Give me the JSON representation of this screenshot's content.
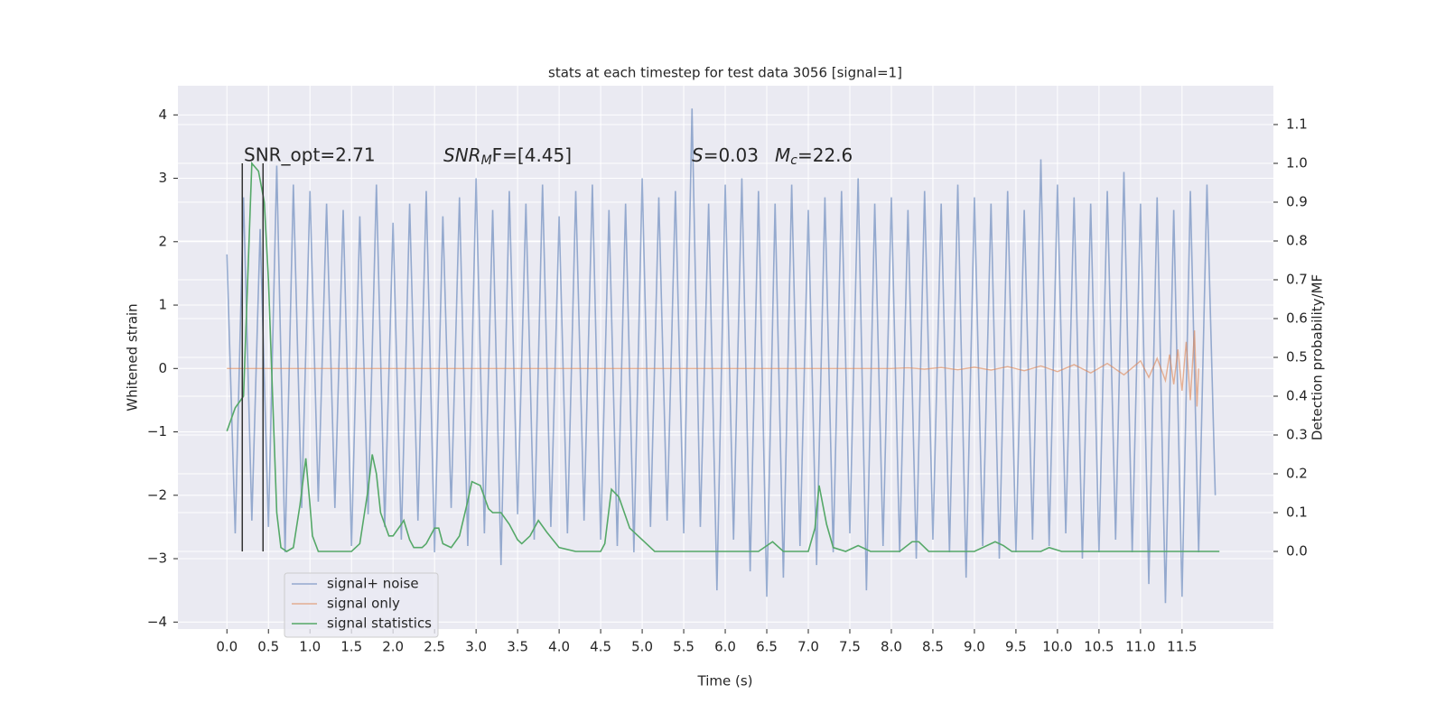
{
  "chart_data": {
    "type": "line",
    "title": "stats at each timestep for test data 3056 [signal=1]",
    "xlabel": "Time (s)",
    "ylabel": "Whitened strain",
    "y2label": "Detection probability/MF",
    "xlim": [
      -0.59,
      12.6
    ],
    "ylim": [
      -4.11,
      4.46
    ],
    "y2lim": [
      -0.2,
      1.2
    ],
    "grid": true,
    "legend": "lower left",
    "xticks": [
      {
        "value": 0,
        "label": "0.0"
      },
      0.5,
      {
        "value": 1,
        "label": "1.0"
      },
      1.5,
      {
        "value": 2,
        "label": "2.0"
      },
      2.5,
      {
        "value": 3,
        "label": "3.0"
      },
      3.5,
      {
        "value": 4,
        "label": "4.0"
      },
      4.5,
      {
        "value": 5,
        "label": "5.0"
      },
      5.5,
      {
        "value": 6,
        "label": "6.0"
      },
      6.5,
      {
        "value": 7,
        "label": "7.0"
      },
      7.5,
      {
        "value": 8,
        "label": "8.0"
      },
      8.5,
      {
        "value": 9,
        "label": "9.0"
      },
      9.5,
      {
        "value": 10,
        "label": "10.0"
      },
      10.5,
      {
        "value": 11,
        "label": "11.0"
      },
      11.5
    ],
    "yticks": [
      {
        "value": -4,
        "label": "−4"
      },
      {
        "value": -3,
        "label": "−3"
      },
      {
        "value": -2,
        "label": "−2"
      },
      {
        "value": -1,
        "label": "−1"
      },
      0,
      1,
      2,
      3,
      4
    ],
    "y2ticks": [
      {
        "value": 0,
        "label": "0.0"
      },
      0.1,
      0.2,
      0.3,
      0.4,
      0.5,
      0.6,
      0.7,
      0.8,
      0.9,
      {
        "value": 1,
        "label": "1.0"
      },
      1.1
    ],
    "annotations": [
      {
        "text": "SNR_opt=2.71"
      },
      {
        "main": "SNR",
        "sub": "M",
        "tail": "F=[4.45]"
      },
      {
        "main": "S",
        "tail": "=0.03"
      },
      {
        "main": "M",
        "sub": "c",
        "tail": "=22.6"
      }
    ],
    "vlines": {
      "x": [
        0.185,
        0.435
      ],
      "ymin": 0,
      "ymax": 1,
      "axis": "y2",
      "color": "#333333"
    },
    "series": [
      {
        "name": "signal+ noise",
        "color": "#4c72b0",
        "x": [
          0.0,
          0.1,
          0.2,
          0.3,
          0.4,
          0.5,
          0.6,
          0.7,
          0.8,
          0.9,
          1.0,
          1.1,
          1.2,
          1.3,
          1.4,
          1.5,
          1.6,
          1.7,
          1.8,
          1.9,
          2.0,
          2.1,
          2.2,
          2.3,
          2.4,
          2.5,
          2.6,
          2.7,
          2.8,
          2.9,
          3.0,
          3.1,
          3.2,
          3.3,
          3.4,
          3.5,
          3.6,
          3.7,
          3.8,
          3.9,
          4.0,
          4.1,
          4.2,
          4.3,
          4.4,
          4.5,
          4.6,
          4.7,
          4.8,
          4.9,
          5.0,
          5.1,
          5.2,
          5.3,
          5.4,
          5.5,
          5.6,
          5.7,
          5.8,
          5.9,
          6.0,
          6.1,
          6.2,
          6.3,
          6.4,
          6.5,
          6.6,
          6.7,
          6.8,
          6.9,
          7.0,
          7.1,
          7.2,
          7.3,
          7.4,
          7.5,
          7.6,
          7.7,
          7.8,
          7.9,
          8.0,
          8.1,
          8.2,
          8.3,
          8.4,
          8.5,
          8.6,
          8.7,
          8.8,
          8.9,
          9.0,
          9.1,
          9.2,
          9.3,
          9.4,
          9.5,
          9.6,
          9.7,
          9.8,
          9.9,
          10.0,
          10.1,
          10.2,
          10.3,
          10.4,
          10.5,
          10.6,
          10.7,
          10.8,
          10.9,
          11.0,
          11.1,
          11.2,
          11.3,
          11.4,
          11.5,
          11.6,
          11.7,
          11.8,
          11.9
        ],
        "values": [
          1.8,
          -2.6,
          2.7,
          -2.4,
          2.2,
          -2.5,
          3.2,
          -2.9,
          2.9,
          -2.2,
          2.8,
          -2.1,
          2.6,
          -2.2,
          2.5,
          -2.8,
          2.4,
          -2.3,
          2.9,
          -2.5,
          2.3,
          -2.7,
          2.6,
          -2.4,
          2.8,
          -2.9,
          2.4,
          -2.2,
          2.7,
          -2.8,
          3.0,
          -2.6,
          2.5,
          -3.1,
          2.8,
          -2.3,
          2.6,
          -2.7,
          2.9,
          -2.5,
          2.4,
          -2.6,
          2.8,
          -2.4,
          2.9,
          -2.7,
          2.5,
          -2.8,
          2.6,
          -2.9,
          3.0,
          -2.5,
          2.7,
          -2.4,
          2.8,
          -2.6,
          4.1,
          -2.5,
          2.6,
          -3.5,
          2.9,
          -2.7,
          3.0,
          -3.2,
          2.8,
          -3.6,
          2.6,
          -3.3,
          2.9,
          -2.8,
          2.5,
          -3.1,
          2.7,
          -2.9,
          2.8,
          -2.6,
          3.0,
          -3.5,
          2.6,
          -2.8,
          2.7,
          -2.9,
          2.5,
          -3.0,
          2.8,
          -2.7,
          2.6,
          -2.9,
          2.9,
          -3.3,
          2.7,
          -2.8,
          2.6,
          -3.0,
          2.8,
          -2.9,
          2.5,
          -2.7,
          3.3,
          -2.8,
          2.9,
          -2.6,
          2.7,
          -3.0,
          2.6,
          -2.9,
          2.8,
          -2.7,
          3.1,
          -2.9,
          2.6,
          -3.4,
          2.7,
          -3.7,
          2.5,
          -3.6,
          2.8,
          -2.9,
          2.9,
          -2.0
        ]
      },
      {
        "name": "signal only",
        "color": "#dd8452",
        "x": [
          0,
          8.0,
          8.2,
          8.4,
          8.6,
          8.8,
          9.0,
          9.2,
          9.4,
          9.6,
          9.8,
          10.0,
          10.2,
          10.4,
          10.6,
          10.8,
          11.0,
          11.1,
          11.2,
          11.3,
          11.35,
          11.4,
          11.45,
          11.5,
          11.55,
          11.6,
          11.65,
          11.68,
          11.7
        ],
        "values": [
          0,
          0,
          0.01,
          -0.01,
          0.015,
          -0.02,
          0.02,
          -0.025,
          0.03,
          -0.035,
          0.04,
          -0.05,
          0.06,
          -0.07,
          0.08,
          -0.1,
          0.12,
          -0.14,
          0.16,
          -0.19,
          0.22,
          -0.25,
          0.3,
          -0.35,
          0.42,
          -0.5,
          0.6,
          -0.6,
          0
        ]
      },
      {
        "name": "signal statistics",
        "color": "#55a868",
        "axis": "y2",
        "x": [
          0,
          0.1,
          0.2,
          0.25,
          0.3,
          0.38,
          0.45,
          0.5,
          0.55,
          0.6,
          0.65,
          0.72,
          0.8,
          0.88,
          0.95,
          1.0,
          1.03,
          1.1,
          1.3,
          1.5,
          1.6,
          1.7,
          1.75,
          1.8,
          1.85,
          1.95,
          2.0,
          2.1,
          2.13,
          2.2,
          2.25,
          2.35,
          2.4,
          2.5,
          2.55,
          2.6,
          2.7,
          2.8,
          2.9,
          2.95,
          3.05,
          3.15,
          3.2,
          3.3,
          3.4,
          3.5,
          3.55,
          3.65,
          3.75,
          3.85,
          4.0,
          4.2,
          4.5,
          4.55,
          4.63,
          4.72,
          4.85,
          5.0,
          5.15,
          5.5,
          6.4,
          6.57,
          6.7,
          7.0,
          7.08,
          7.13,
          7.22,
          7.3,
          7.45,
          7.6,
          7.75,
          8.1,
          8.25,
          8.33,
          8.45,
          9.0,
          9.1,
          9.25,
          9.35,
          9.45,
          9.8,
          9.9,
          10.05,
          11.95
        ],
        "values": [
          0.31,
          0.37,
          0.4,
          0.7,
          1.0,
          0.98,
          0.9,
          0.7,
          0.4,
          0.1,
          0.01,
          0.0,
          0.01,
          0.12,
          0.24,
          0.12,
          0.04,
          0.0,
          0.0,
          0.0,
          0.02,
          0.16,
          0.25,
          0.2,
          0.1,
          0.04,
          0.04,
          0.07,
          0.08,
          0.03,
          0.01,
          0.01,
          0.02,
          0.06,
          0.06,
          0.02,
          0.01,
          0.04,
          0.13,
          0.18,
          0.17,
          0.11,
          0.1,
          0.1,
          0.07,
          0.03,
          0.02,
          0.04,
          0.08,
          0.05,
          0.01,
          0.0,
          0.0,
          0.02,
          0.16,
          0.14,
          0.06,
          0.03,
          0.0,
          0.0,
          0.0,
          0.025,
          0.0,
          0.0,
          0.06,
          0.17,
          0.07,
          0.01,
          0.0,
          0.015,
          0.0,
          0.0,
          0.025,
          0.025,
          0.0,
          0.0,
          0.01,
          0.025,
          0.015,
          0.0,
          0.0,
          0.01,
          0.0,
          0.0
        ]
      }
    ]
  }
}
